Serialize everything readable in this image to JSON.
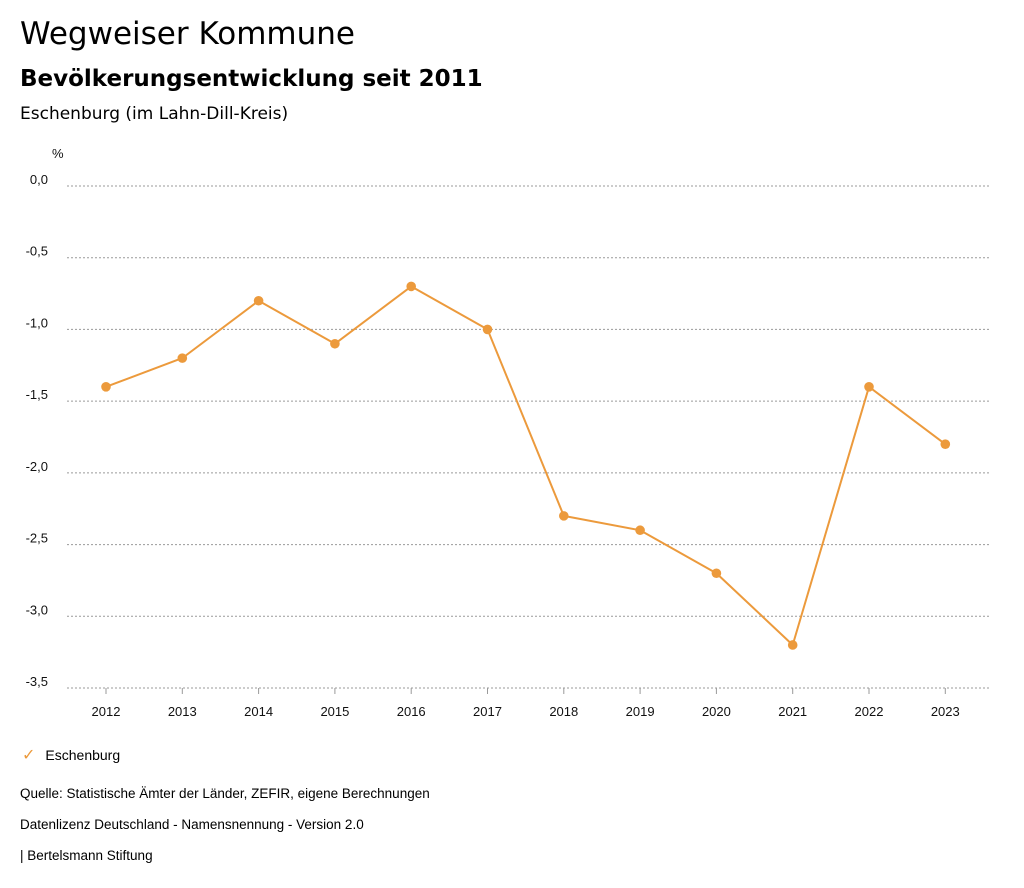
{
  "header": {
    "title": "Wegweiser Kommune",
    "subtitle": "Bevölkerungsentwicklung seit 2011",
    "region": "Eschenburg (im Lahn-Dill-Kreis)"
  },
  "chart_data": {
    "type": "line",
    "title": "Bevölkerungsentwicklung seit 2011",
    "ylabel": "%",
    "xlabel": "",
    "categories": [
      "2012",
      "2013",
      "2014",
      "2015",
      "2016",
      "2017",
      "2018",
      "2019",
      "2020",
      "2021",
      "2022",
      "2023"
    ],
    "series": [
      {
        "name": "Eschenburg",
        "values": [
          -1.4,
          -1.2,
          -0.8,
          -1.1,
          -0.7,
          -1.0,
          -2.3,
          -2.4,
          -2.7,
          -3.2,
          -1.4,
          -1.8
        ]
      }
    ],
    "ylim": [
      -3.5,
      0.0
    ],
    "yticks": [
      0.0,
      -0.5,
      -1.0,
      -1.5,
      -2.0,
      -2.5,
      -3.0,
      -3.5
    ],
    "ytick_labels": [
      "0,0",
      "-0,5",
      "-1,0",
      "-1,5",
      "-2,0",
      "-2,5",
      "-3,0",
      "-3,5"
    ],
    "grid": true,
    "legend_position": "bottom-left",
    "color": "#ec9a3c"
  },
  "legend": {
    "label": "Eschenburg",
    "icon": "check-icon"
  },
  "footer": {
    "source": "Quelle: Statistische Ämter der Länder, ZEFIR, eigene Berechnungen",
    "license": "Datenlizenz Deutschland - Namensnennung - Version 2.0",
    "publisher": "| Bertelsmann Stiftung"
  }
}
